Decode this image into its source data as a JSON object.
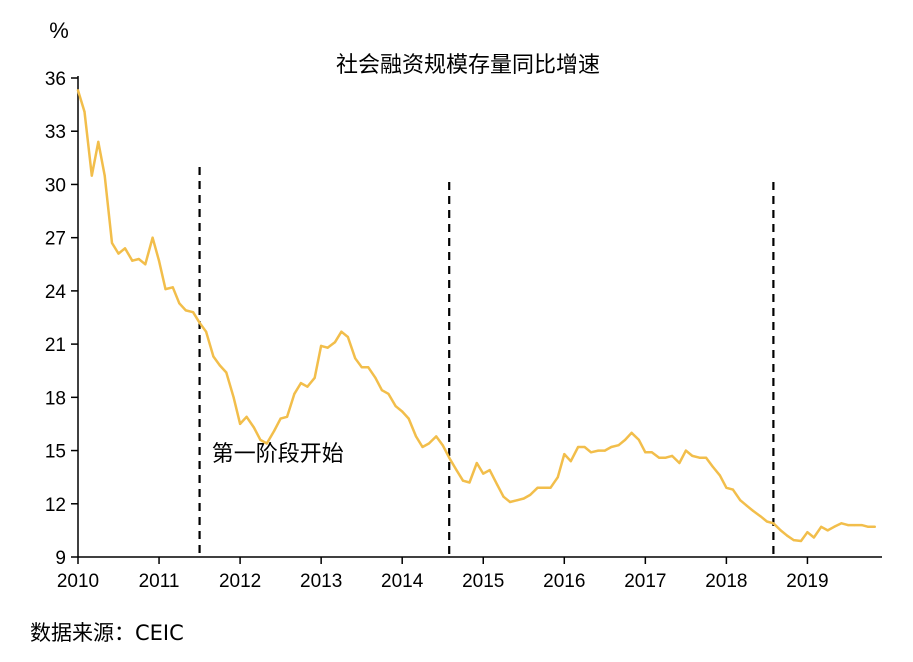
{
  "chart_data": {
    "type": "line",
    "title": "社会融资规模存量同比增速",
    "ylabel": "%",
    "xlabel": "",
    "ylim": [
      9,
      36
    ],
    "yticks": [
      9,
      12,
      15,
      18,
      21,
      24,
      27,
      30,
      33,
      36
    ],
    "xlim": [
      2010,
      2019.83
    ],
    "xticks": [
      2010,
      2011,
      2012,
      2013,
      2014,
      2015,
      2016,
      2017,
      2018,
      2019
    ],
    "grid": false,
    "line_color": "#F2BE4B",
    "series": [
      {
        "x": [
          2010.0,
          2010.08,
          2010.17,
          2010.25,
          2010.33,
          2010.42,
          2010.5,
          2010.58,
          2010.67,
          2010.75,
          2010.83,
          2010.92,
          2011.0,
          2011.08,
          2011.17,
          2011.25,
          2011.33,
          2011.42,
          2011.5,
          2011.58,
          2011.67,
          2011.75,
          2011.83,
          2011.92,
          2012.0,
          2012.08,
          2012.17,
          2012.25,
          2012.33,
          2012.42,
          2012.5,
          2012.58,
          2012.67,
          2012.75,
          2012.83,
          2012.92,
          2013.0,
          2013.08,
          2013.17,
          2013.25,
          2013.33,
          2013.42,
          2013.5,
          2013.58,
          2013.67,
          2013.75,
          2013.83,
          2013.92,
          2014.0,
          2014.08,
          2014.17,
          2014.25,
          2014.33,
          2014.42,
          2014.5,
          2014.58,
          2014.67,
          2014.75,
          2014.83,
          2014.92,
          2015.0,
          2015.08,
          2015.17,
          2015.25,
          2015.33,
          2015.42,
          2015.5,
          2015.58,
          2015.67,
          2015.75,
          2015.83,
          2015.92,
          2016.0,
          2016.08,
          2016.17,
          2016.25,
          2016.33,
          2016.42,
          2016.5,
          2016.58,
          2016.67,
          2016.75,
          2016.83,
          2016.92,
          2017.0,
          2017.08,
          2017.17,
          2017.25,
          2017.33,
          2017.42,
          2017.5,
          2017.58,
          2017.67,
          2017.75,
          2017.83,
          2017.92,
          2018.0,
          2018.08,
          2018.17,
          2018.25,
          2018.33,
          2018.42,
          2018.5,
          2018.58,
          2018.67,
          2018.75,
          2018.83,
          2018.92,
          2019.0,
          2019.08,
          2019.17,
          2019.25,
          2019.33,
          2019.42,
          2019.5,
          2019.58,
          2019.67,
          2019.75,
          2019.83
        ],
        "values": [
          35.3,
          34.1,
          30.5,
          32.4,
          30.5,
          26.7,
          26.1,
          26.4,
          25.7,
          25.8,
          25.5,
          27.0,
          25.7,
          24.1,
          24.2,
          23.3,
          22.9,
          22.8,
          22.2,
          21.7,
          20.3,
          19.8,
          19.4,
          18.0,
          16.5,
          16.9,
          16.3,
          15.6,
          15.4,
          16.1,
          16.8,
          16.9,
          18.2,
          18.8,
          18.6,
          19.1,
          20.9,
          20.8,
          21.1,
          21.7,
          21.4,
          20.2,
          19.7,
          19.7,
          19.1,
          18.4,
          18.2,
          17.5,
          17.2,
          16.8,
          15.8,
          15.2,
          15.4,
          15.8,
          15.3,
          14.6,
          13.9,
          13.3,
          13.2,
          14.3,
          13.7,
          13.9,
          13.1,
          12.4,
          12.1,
          12.2,
          12.3,
          12.5,
          12.9,
          12.9,
          12.9,
          13.5,
          14.8,
          14.4,
          15.2,
          15.2,
          14.9,
          15.0,
          15.0,
          15.2,
          15.3,
          15.6,
          16.0,
          15.6,
          14.9,
          14.9,
          14.6,
          14.6,
          14.7,
          14.3,
          15.0,
          14.7,
          14.6,
          14.6,
          14.1,
          13.6,
          12.9,
          12.8,
          12.2,
          11.9,
          11.6,
          11.3,
          11.0,
          10.9,
          10.5,
          10.2,
          9.95,
          9.9,
          10.4,
          10.1,
          10.7,
          10.5,
          10.7,
          10.9,
          10.8,
          10.8,
          10.8,
          10.7,
          10.7
        ]
      }
    ],
    "vlines": [
      2011.5,
      2014.58,
      2018.58
    ],
    "annotations": [
      {
        "text": "第一阶段开始",
        "x": 2011.65,
        "y": 14.4
      }
    ]
  },
  "footer": {
    "source": "数据来源：CEIC"
  }
}
